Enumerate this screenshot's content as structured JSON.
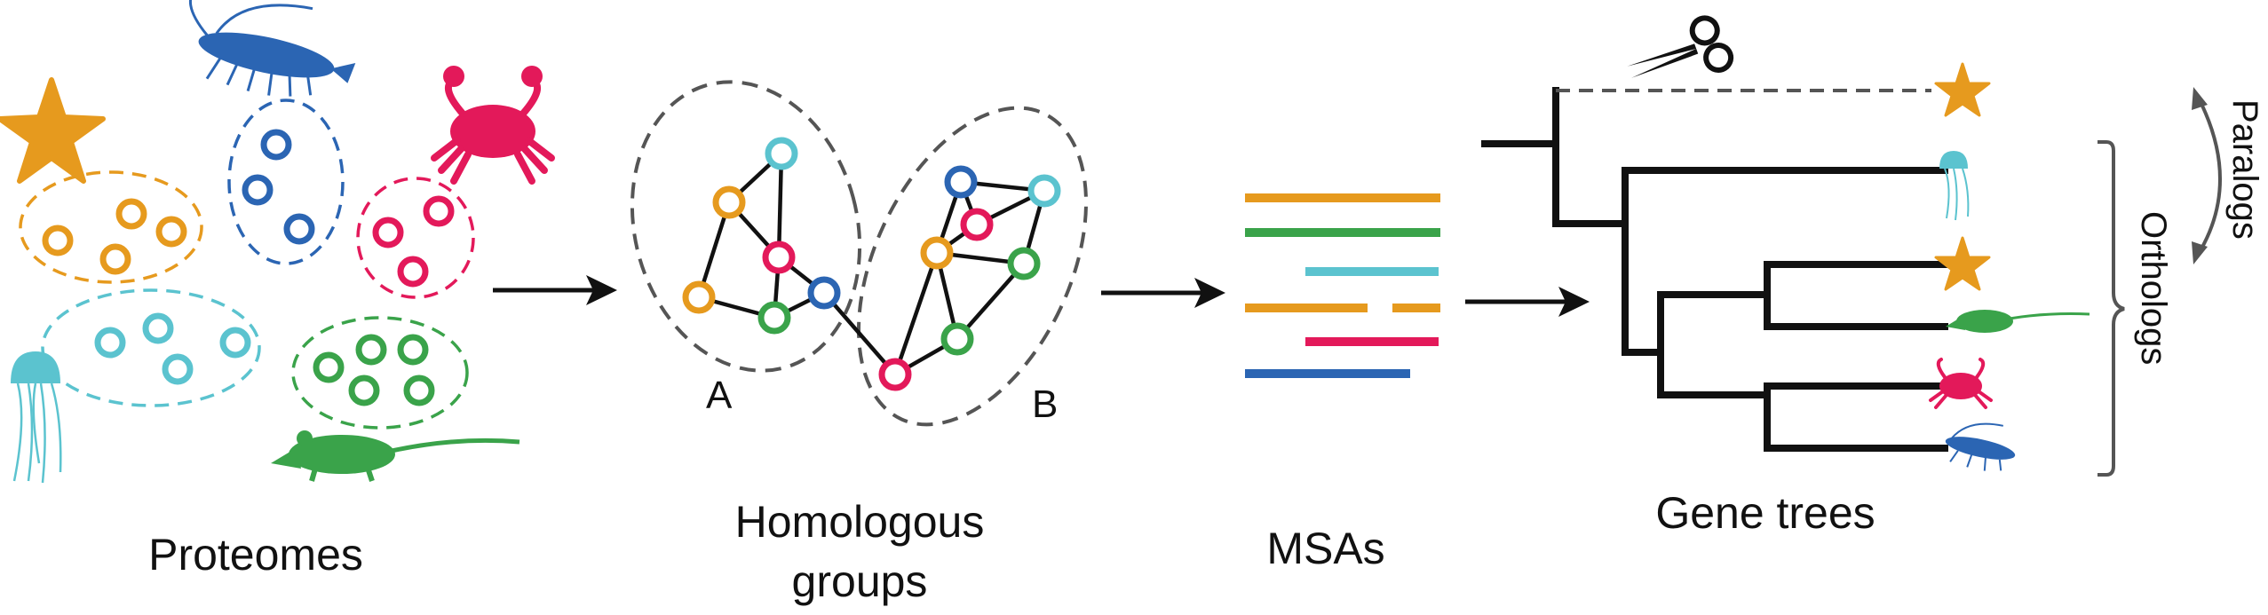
{
  "stages": {
    "proteomes": "Proteomes",
    "homologous_line1": "Homologous",
    "homologous_line2": "groups",
    "msas": "MSAs",
    "gene_trees": "Gene trees"
  },
  "graph_labels": {
    "a": "A",
    "b": "B"
  },
  "side_labels": {
    "paralogs": "Paralogs",
    "orthologs": "Orthologs"
  },
  "colors": {
    "orange": "#E69A1E",
    "green": "#3AA34A",
    "cyan": "#5BC3CF",
    "red": "#E3195A",
    "blue": "#2B65B3",
    "dark": "#111111",
    "gray": "#555555"
  },
  "icons": [
    "starfish-icon",
    "jellyfish-icon",
    "crab-icon",
    "rat-icon",
    "krill-icon",
    "scissors-icon"
  ]
}
